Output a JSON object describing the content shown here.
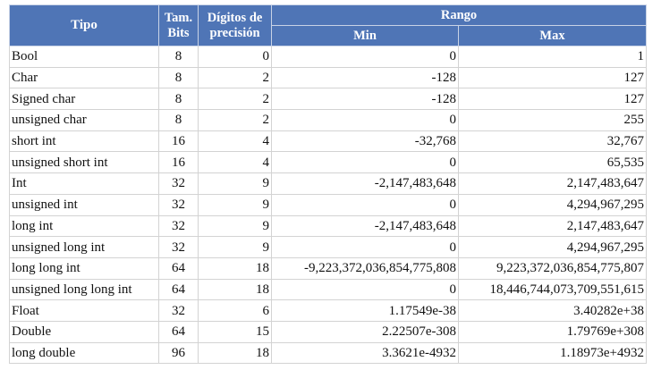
{
  "table": {
    "header": {
      "type": "Tipo",
      "bits": "Tam.\nBits",
      "digits": "Dígitos de\nprecisión",
      "range": "Rango",
      "min": "Min",
      "max": "Max"
    },
    "rows": [
      [
        "Bool",
        "8",
        "0",
        "0",
        "1"
      ],
      [
        "Char",
        "8",
        "2",
        "-128",
        "127"
      ],
      [
        "Signed char",
        "8",
        "2",
        "-128",
        "127"
      ],
      [
        "unsigned char",
        "8",
        "2",
        "0",
        "255"
      ],
      [
        "short int",
        "16",
        "4",
        "-32,768",
        "32,767"
      ],
      [
        "unsigned short int",
        "16",
        "4",
        "0",
        "65,535"
      ],
      [
        "Int",
        "32",
        "9",
        "-2,147,483,648",
        "2,147,483,647"
      ],
      [
        "unsigned int",
        "32",
        "9",
        "0",
        "4,294,967,295"
      ],
      [
        "long int",
        "32",
        "9",
        "-2,147,483,648",
        "2,147,483,647"
      ],
      [
        "unsigned long int",
        "32",
        "9",
        "0",
        "4,294,967,295"
      ],
      [
        "long long int",
        "64",
        "18",
        "-9,223,372,036,854,775,808",
        "9,223,372,036,854,775,807"
      ],
      [
        "unsigned long long int",
        "64",
        "18",
        "0",
        "18,446,744,073,709,551,615"
      ],
      [
        "Float",
        "32",
        "6",
        "1.17549e-38",
        "3.40282e+38"
      ],
      [
        "Double",
        "64",
        "15",
        "2.22507e-308",
        "1.79769e+308"
      ],
      [
        "long double",
        "96",
        "18",
        "3.3621e-4932",
        "1.18973e+4932"
      ]
    ]
  }
}
